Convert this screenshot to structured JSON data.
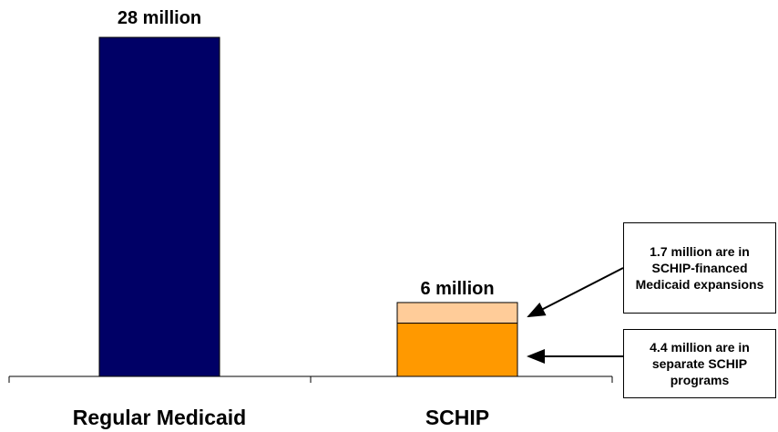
{
  "chart_data": {
    "type": "bar",
    "title": "",
    "xlabel": "",
    "ylabel": "",
    "ylim": [
      0,
      28
    ],
    "grid": false,
    "legend": "none",
    "categories": [
      "Regular Medicaid",
      "SCHIP"
    ],
    "totals": [
      "28 million",
      "6 million"
    ],
    "bars": [
      {
        "category": "Regular Medicaid",
        "segments": [
          {
            "value": 28,
            "color": "#000066"
          }
        ]
      },
      {
        "category": "SCHIP",
        "segments": [
          {
            "value": 4.4,
            "color": "#ff9900",
            "annotation": "4.4 million are in separate SCHIP programs"
          },
          {
            "value": 1.7,
            "color": "#ffcc99",
            "annotation": "1.7 million are in SCHIP-financed Medicaid expansions"
          }
        ]
      }
    ]
  }
}
